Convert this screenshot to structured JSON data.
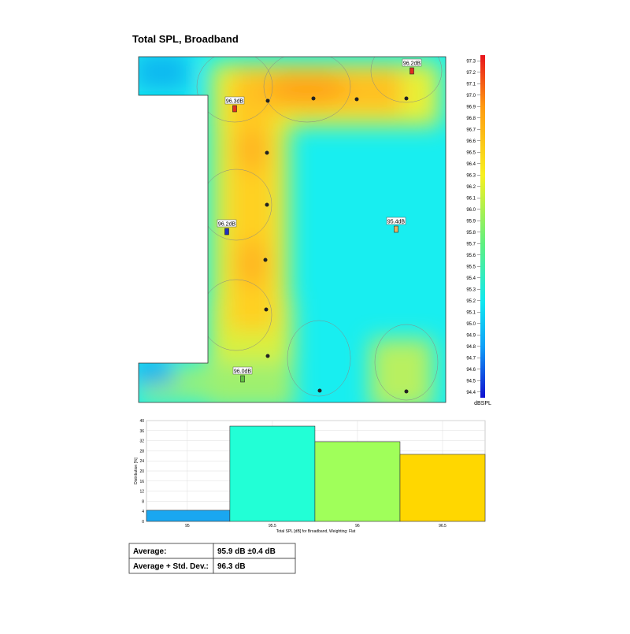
{
  "title": "Total SPL, Broadband",
  "receivers": [
    "96.2dB",
    "96.3dB",
    "96.2dB",
    "95.4dB",
    "96.0dB"
  ],
  "colorbar": {
    "label": "dBSPL",
    "clim": [
      94.35,
      97.35
    ],
    "ticks": [
      94.4,
      94.5,
      94.6,
      94.7,
      94.8,
      94.9,
      {
        "value": 95.0,
        "label": "95.0"
      },
      95.1,
      95.2,
      95.3,
      95.4,
      95.5,
      95.6,
      95.7,
      95.8,
      95.9,
      {
        "value": 96.0,
        "label": "96.0"
      },
      96.1,
      96.2,
      96.3,
      96.4,
      96.5,
      96.6,
      96.7,
      96.8,
      96.9,
      {
        "value": 97.0,
        "label": "97.0"
      },
      97.1,
      97.2,
      97.3
    ]
  },
  "chart_data": {
    "type": "histogram",
    "bins": [
      94.76,
      95.25,
      95.75,
      96.25,
      96.75
    ],
    "values": [
      4.4,
      37.8,
      31.6,
      26.6
    ],
    "colors": [
      "#1aa7f0",
      "#22ffd6",
      "#a0ff5a",
      "#ffd700"
    ],
    "xlim": [
      94.76,
      96.75
    ],
    "xticks": [
      95,
      95.5,
      96,
      96.5
    ],
    "ylim": [
      0,
      40
    ],
    "yticks": [
      0,
      4,
      8,
      12,
      16,
      20,
      24,
      28,
      32,
      36,
      40
    ],
    "xlabel": "Total SPL [dB] for Broadband, Weighting: Flat",
    "ylabel": "Distribution [%]",
    "grid": true
  },
  "table": {
    "rows": [
      [
        "Average:",
        "95.9 dB ±0.4 dB"
      ],
      [
        "Average + Std. Dev.:",
        "96.3 dB"
      ]
    ]
  }
}
